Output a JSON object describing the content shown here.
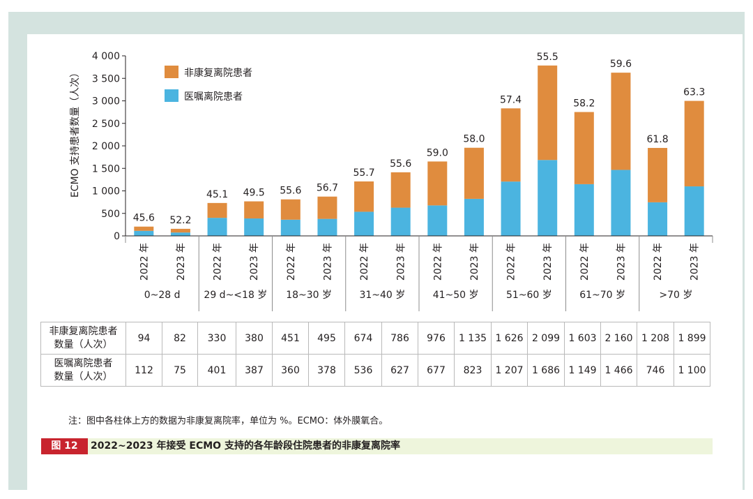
{
  "colors": {
    "non_recovery": "#e08c3e",
    "ordered": "#4bb4e0",
    "frame": "#d4e3df",
    "caption_bg": "#eef5dc",
    "fig_label_bg": "#c8242e"
  },
  "chart_data": {
    "type": "bar",
    "stacked": true,
    "ylabel": "ECMO 支持患者数量（人次）",
    "ylim": [
      0,
      4000
    ],
    "yticks": [
      0,
      500,
      1000,
      1500,
      2000,
      2500,
      3000,
      3500,
      4000
    ],
    "ytick_labels": [
      "0",
      "500",
      "1 000",
      "1 500",
      "2 000",
      "2 500",
      "3 000",
      "3 500",
      "4 000"
    ],
    "legend": [
      "非康复离院患者",
      "医嘱离院患者"
    ],
    "legend_position": "top-left",
    "groups": [
      "0~28 d",
      "29 d~<18 岁",
      "18~30 岁",
      "31~40 岁",
      "41~50 岁",
      "51~60 岁",
      "61~70 岁",
      ">70 岁"
    ],
    "categories": [
      "2022 年",
      "2023 年",
      "2022 年",
      "2023 年",
      "2022 年",
      "2023 年",
      "2022 年",
      "2023 年",
      "2022 年",
      "2023 年",
      "2022 年",
      "2023 年",
      "2022 年",
      "2023 年",
      "2022 年",
      "2023 年"
    ],
    "series": [
      {
        "name": "医嘱离院患者",
        "values": [
          112,
          75,
          401,
          387,
          360,
          378,
          536,
          627,
          677,
          823,
          1207,
          1686,
          1149,
          1466,
          746,
          1100
        ]
      },
      {
        "name": "非康复离院患者",
        "values": [
          94,
          82,
          330,
          380,
          451,
          495,
          674,
          786,
          976,
          1135,
          1626,
          2099,
          1603,
          2160,
          1208,
          1899
        ]
      }
    ],
    "rate_labels": [
      "45.6",
      "52.2",
      "45.1",
      "49.5",
      "55.6",
      "56.7",
      "55.7",
      "55.6",
      "59.0",
      "58.0",
      "57.4",
      "55.5",
      "58.2",
      "59.6",
      "61.8",
      "63.3"
    ]
  },
  "table": {
    "row1_header": [
      "非康复离院患者",
      "数量（人次）"
    ],
    "row1": [
      "94",
      "82",
      "330",
      "380",
      "451",
      "495",
      "674",
      "786",
      "976",
      "1 135",
      "1 626",
      "2 099",
      "1 603",
      "2 160",
      "1 208",
      "1 899"
    ],
    "row2_header": [
      "医嘱离院患者",
      "数量（人次）"
    ],
    "row2": [
      "112",
      "75",
      "401",
      "387",
      "360",
      "378",
      "536",
      "627",
      "677",
      "823",
      "1 207",
      "1 686",
      "1 149",
      "1 466",
      "746",
      "1 100"
    ]
  },
  "note": "注：图中各柱体上方的数据为非康复离院率，单位为 %。ECMO：体外膜氧合。",
  "caption": {
    "label": "图 12",
    "title": "2022~2023 年接受 ECMO 支持的各年龄段住院患者的非康复离院率"
  }
}
